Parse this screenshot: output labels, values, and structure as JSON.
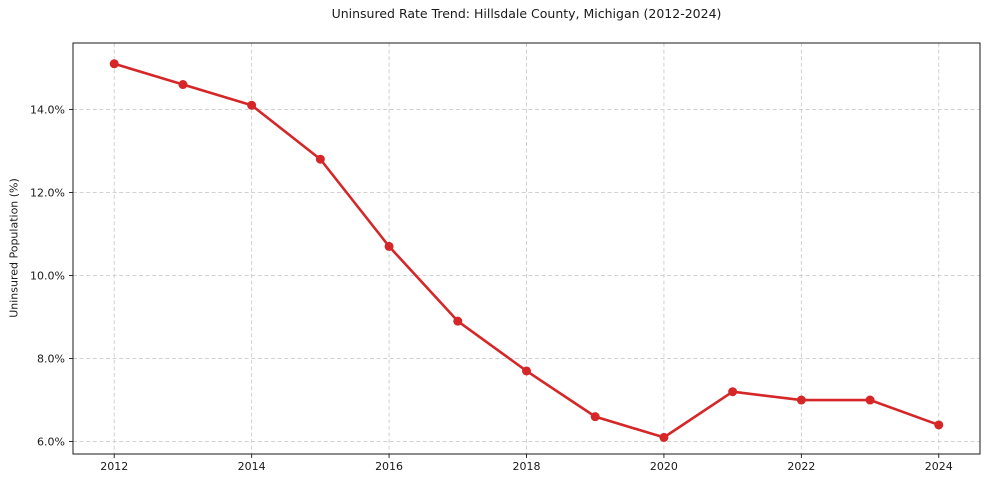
{
  "figure": {
    "background": "#ffffff"
  },
  "chart_data": {
    "type": "line",
    "title": "Uninsured Rate Trend: Hillsdale County, Michigan (2012-2024)",
    "xlabel": "",
    "ylabel": "Uninsured Population (%)",
    "x": [
      2012,
      2013,
      2014,
      2015,
      2016,
      2017,
      2018,
      2019,
      2020,
      2021,
      2022,
      2023,
      2024
    ],
    "values": [
      15.1,
      14.6,
      14.1,
      12.8,
      10.7,
      8.9,
      7.7,
      6.6,
      6.1,
      7.2,
      7.0,
      7.0,
      6.4
    ],
    "x_ticks": [
      2012,
      2014,
      2016,
      2018,
      2020,
      2022,
      2024
    ],
    "x_tick_labels": [
      "2012",
      "2014",
      "2016",
      "2018",
      "2020",
      "2022",
      "2024"
    ],
    "y_ticks": [
      6,
      8,
      10,
      12,
      14
    ],
    "y_tick_labels": [
      "6.0%",
      "8.0%",
      "10.0%",
      "12.0%",
      "14.0%"
    ],
    "xlim": [
      2011.4,
      2024.6
    ],
    "ylim": [
      5.7,
      15.6
    ],
    "grid": true,
    "grid_style": "dashed",
    "legend_position": "none",
    "line_color": "#d62728",
    "marker": "circle",
    "grid_color": "#cccccc",
    "axis_color": "#1a1a1a",
    "text_color": "#1a1a1a"
  }
}
